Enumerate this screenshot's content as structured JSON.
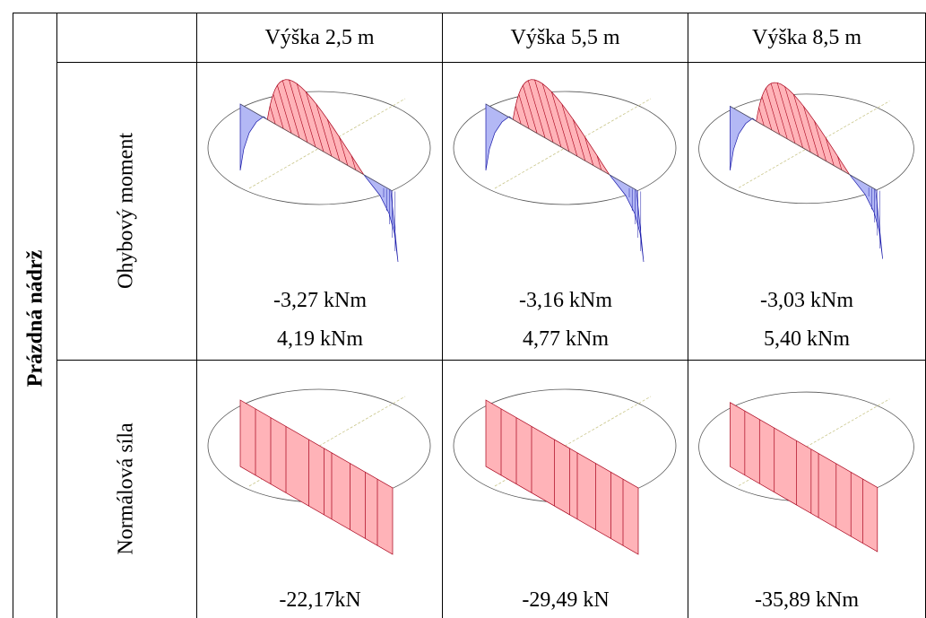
{
  "table": {
    "group_label": "Prázdná nádrž",
    "columns": [
      "Výška 2,5 m",
      "Výška 5,5 m",
      "Výška 8,5 m"
    ],
    "rows": [
      {
        "label": "Ohybový moment",
        "cells": [
          {
            "values": [
              "-3,27 kNm",
              "4,19 kNm"
            ]
          },
          {
            "values": [
              "-3,16 kNm",
              "4,77 kNm"
            ]
          },
          {
            "values": [
              "-3,03 kNm",
              "5,40 kNm"
            ]
          }
        ]
      },
      {
        "label": "Normálová síla",
        "cells": [
          {
            "values": [
              "-22,17kN"
            ]
          },
          {
            "values": [
              "-29,49 kN"
            ]
          },
          {
            "values": [
              "-35,89 kNm"
            ]
          }
        ]
      }
    ]
  },
  "colors": {
    "positive_fill": "#ffb3b8",
    "positive_line": "#a8001a",
    "negative_fill": "#b3b8f5",
    "negative_line": "#1a1aaa",
    "axis": "#c9c68a",
    "circle": "#555555"
  }
}
